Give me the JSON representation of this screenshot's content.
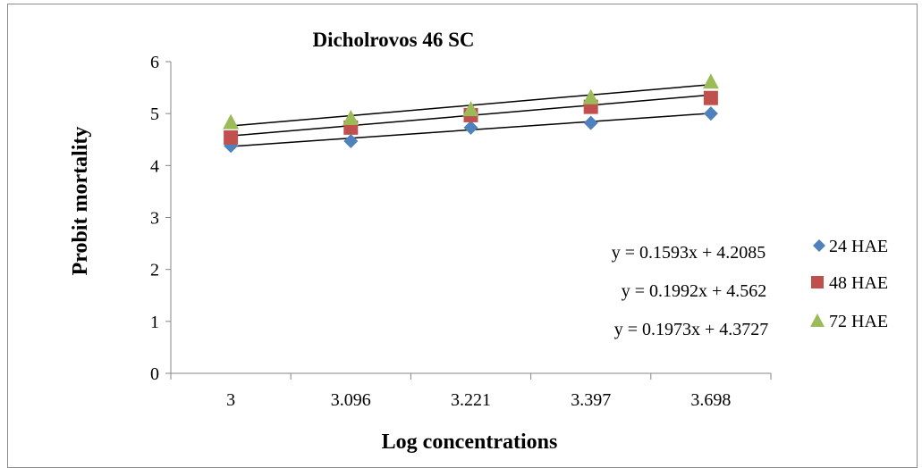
{
  "chart_data": {
    "type": "scatter",
    "title": "Dicholrovos 46 SC",
    "xlabel": "Log concentrations",
    "ylabel": "Probit mortality",
    "categories": [
      "3",
      "3.096",
      "3.221",
      "3.397",
      "3.698"
    ],
    "ylim": [
      0,
      6
    ],
    "yticks": [
      "0",
      "1",
      "2",
      "3",
      "4",
      "5",
      "6"
    ],
    "grid": false,
    "legend_position": "right",
    "series": [
      {
        "name": "24 HAE",
        "values": [
          4.38,
          4.47,
          4.73,
          4.82,
          5.0
        ],
        "color": "#4f81bd",
        "marker": "diamond",
        "trendline": {
          "slope": 0.1593,
          "intercept": 4.2085
        }
      },
      {
        "name": "48 HAE",
        "values": [
          4.54,
          4.73,
          4.97,
          5.13,
          5.3
        ],
        "color": "#c0504d",
        "marker": "square",
        "trendline": {
          "slope": 0.1973,
          "intercept": 4.3727
        }
      },
      {
        "name": "72 HAE",
        "values": [
          4.82,
          4.9,
          5.07,
          5.3,
          5.6
        ],
        "color": "#9bbb59",
        "marker": "triangle",
        "trendline": {
          "slope": 0.1992,
          "intercept": 4.562
        }
      }
    ],
    "equations": [
      "y = 0.1593x + 4.2085",
      "y = 0.1992x + 4.562",
      "y = 0.1973x + 4.3727"
    ]
  }
}
